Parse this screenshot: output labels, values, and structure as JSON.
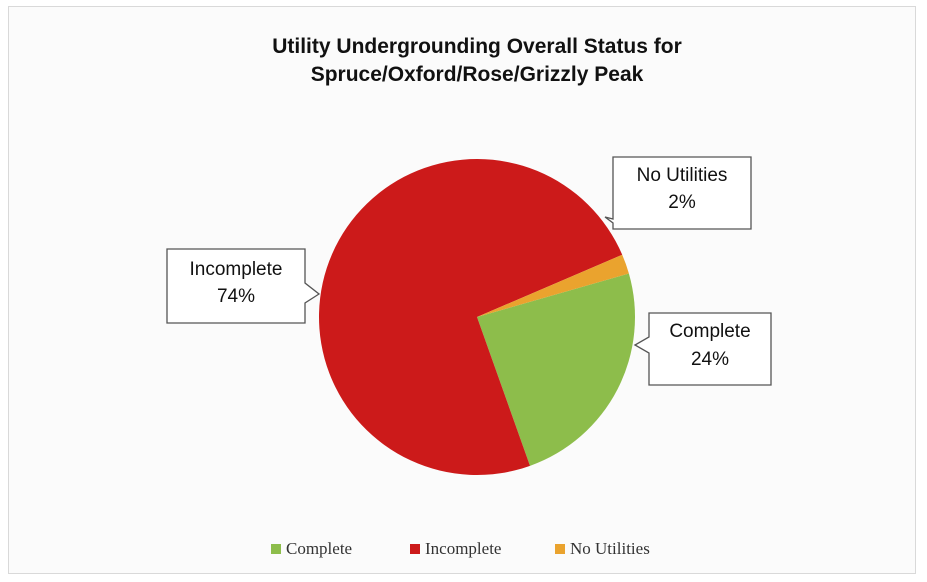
{
  "chart_data": {
    "type": "pie",
    "title": "Utility Undergrounding Overall Status for Spruce/Oxford/Rose/Grizzly Peak",
    "title_lines": [
      "Utility Undergrounding Overall Status for",
      "Spruce/Oxford/Rose/Grizzly Peak"
    ],
    "slices": [
      {
        "label": "Complete",
        "value": 24,
        "pct_label": "24%",
        "color": "#8dbd4b"
      },
      {
        "label": "Incomplete",
        "value": 74,
        "pct_label": "74%",
        "color": "#cc1a1a"
      },
      {
        "label": "No Utilities",
        "value": 2,
        "pct_label": "2%",
        "color": "#eaa32e"
      }
    ],
    "legend_position": "bottom"
  }
}
